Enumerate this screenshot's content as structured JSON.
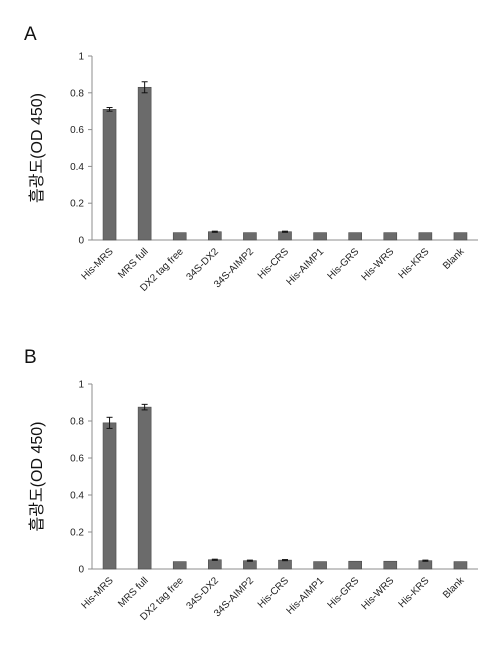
{
  "figure": {
    "colors": {
      "bar": "#6b6b6b",
      "bar_edge": "#4a4a4a",
      "axis": "#8c8c8c",
      "text": "#111111"
    }
  },
  "chart_data": [
    {
      "type": "bar",
      "panel": "A",
      "ylabel": "흡광도(OD 450)",
      "ylim": [
        0,
        1
      ],
      "yticks": [
        "0",
        "0.2",
        "0.4",
        "0.6",
        "0.8",
        "1"
      ],
      "ytick_values": [
        0,
        0.2,
        0.4,
        0.6,
        0.8,
        1
      ],
      "categories": [
        "His-MRS",
        "MRS full",
        "DX2 tag free",
        "34S-DX2",
        "34S-AIMP2",
        "His-CRS",
        "His-AIMP1",
        "His-GRS",
        "His-WRS",
        "His-KRS",
        "Blank"
      ],
      "values": [
        0.71,
        0.83,
        0.04,
        0.045,
        0.04,
        0.045,
        0.04,
        0.04,
        0.04,
        0.04,
        0.04
      ],
      "errors": [
        0.01,
        0.03,
        0,
        0.003,
        0,
        0.003,
        0,
        0,
        0,
        0,
        0
      ],
      "grid": false
    },
    {
      "type": "bar",
      "panel": "B",
      "ylabel": "흡광도(OD 450)",
      "ylim": [
        0,
        1
      ],
      "yticks": [
        "0",
        "0.2",
        "0.4",
        "0.6",
        "0.8",
        "1"
      ],
      "ytick_values": [
        0,
        0.2,
        0.4,
        0.6,
        0.8,
        1
      ],
      "categories": [
        "His-MRS",
        "MRS full",
        "DX2 tag free",
        "34S-DX2",
        "34S-AIMP2",
        "His-CRS",
        "His-AIMP1",
        "His-GRS",
        "His-WRS",
        "His-KRS",
        "Blank"
      ],
      "values": [
        0.79,
        0.875,
        0.04,
        0.05,
        0.045,
        0.048,
        0.04,
        0.042,
        0.042,
        0.045,
        0.04
      ],
      "errors": [
        0.03,
        0.015,
        0,
        0.003,
        0.003,
        0.003,
        0,
        0,
        0,
        0.003,
        0
      ],
      "grid": false
    }
  ]
}
